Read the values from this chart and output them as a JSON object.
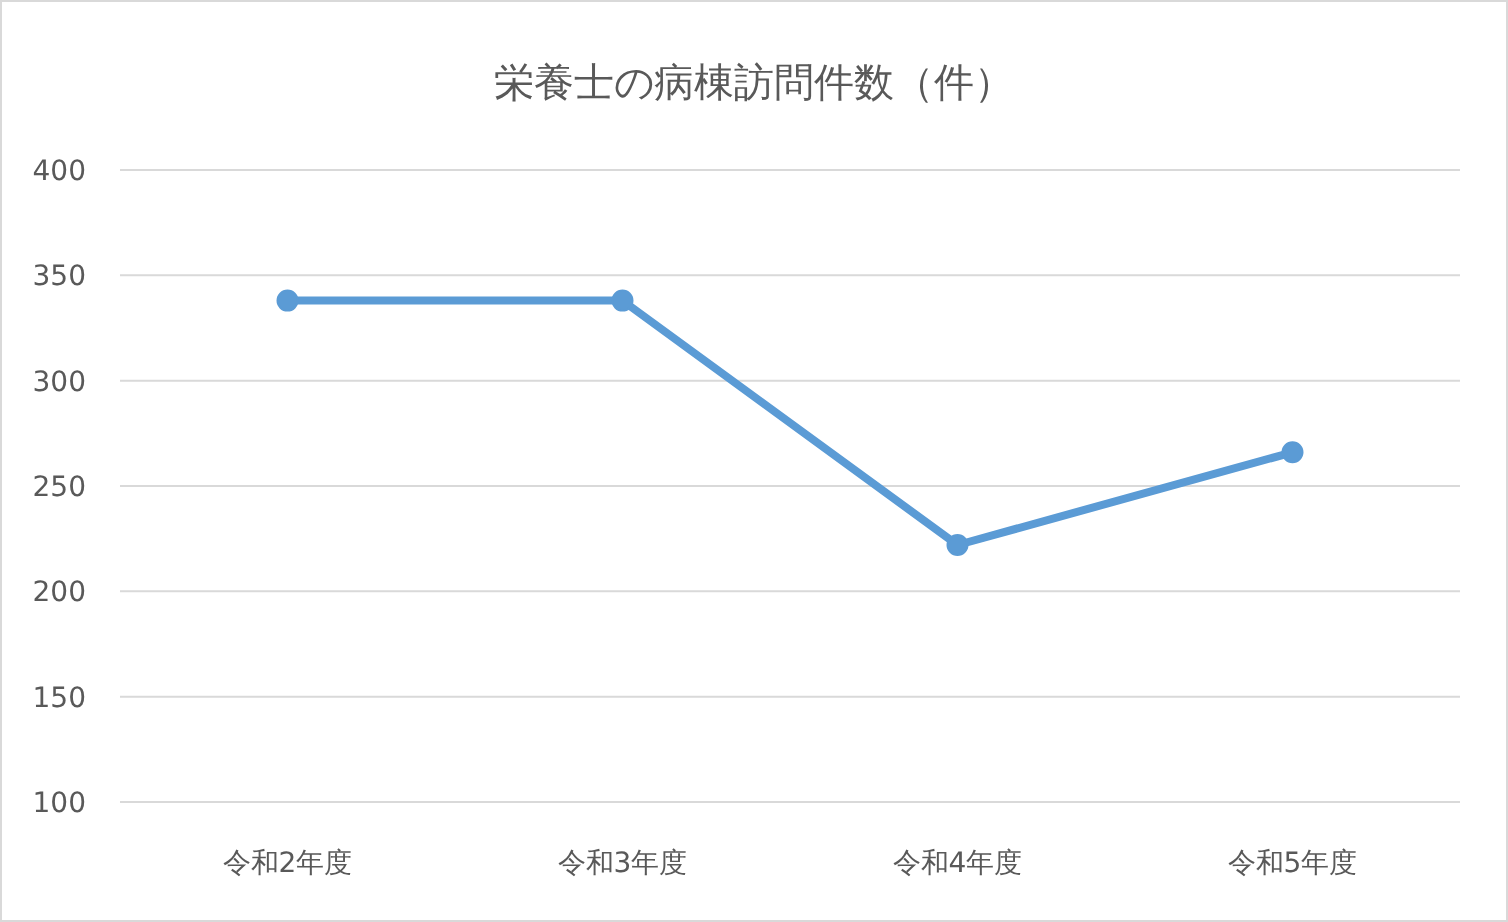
{
  "chart_data": {
    "type": "line",
    "title": "栄養士の病棟訪問件数（件）",
    "categories": [
      "令和2年度",
      "令和3年度",
      "令和4年度",
      "令和5年度"
    ],
    "series": [
      {
        "color": "#5b9bd5",
        "values": [
          338,
          338,
          222,
          266
        ]
      }
    ],
    "ylim": [
      100,
      400
    ],
    "yticks": [
      100,
      150,
      200,
      250,
      300,
      350,
      400
    ],
    "grid": "y",
    "marker": "circle",
    "line_style": "solid"
  }
}
